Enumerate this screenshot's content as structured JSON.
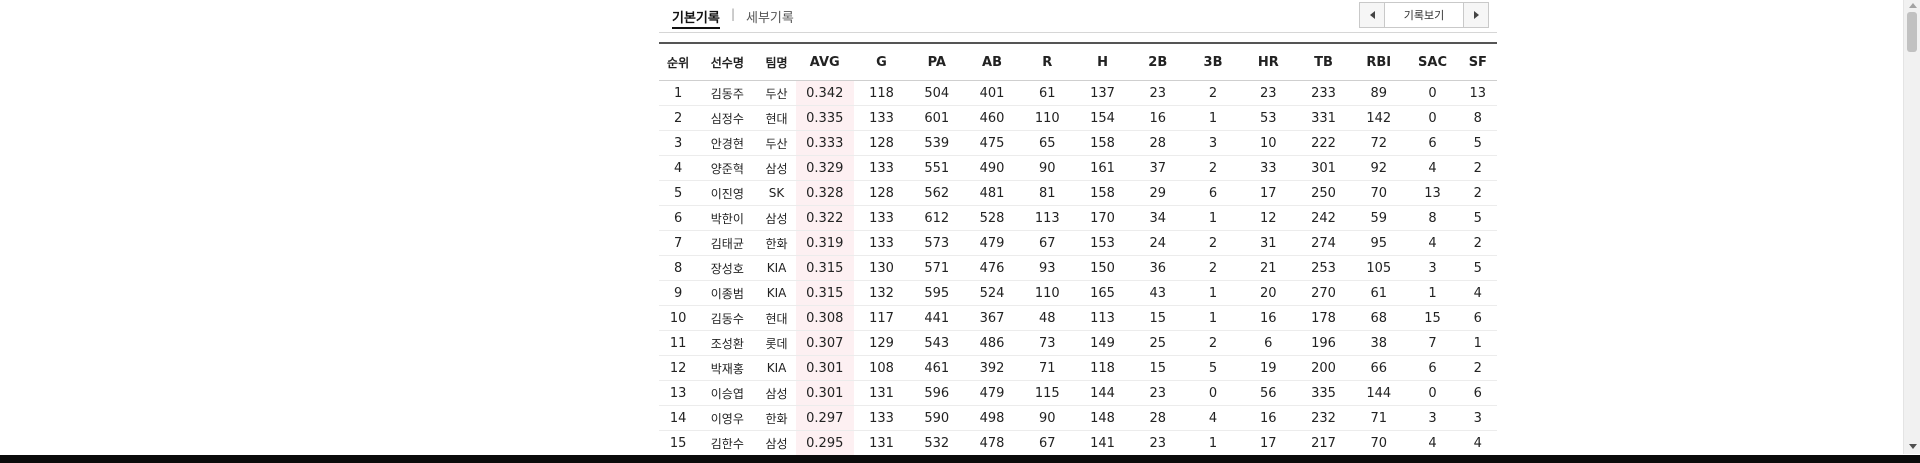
{
  "tabs": {
    "basic": "기본기록",
    "separator": "|",
    "detail": "세부기록"
  },
  "pager": {
    "label": "기록보기"
  },
  "table": {
    "columns": [
      "순위",
      "선수명",
      "팀명",
      "AVG",
      "G",
      "PA",
      "AB",
      "R",
      "H",
      "2B",
      "3B",
      "HR",
      "TB",
      "RBI",
      "SAC",
      "SF"
    ],
    "rows": [
      [
        "1",
        "김동주",
        "두산",
        "0.342",
        "118",
        "504",
        "401",
        "61",
        "137",
        "23",
        "2",
        "23",
        "233",
        "89",
        "0",
        "13"
      ],
      [
        "2",
        "심정수",
        "현대",
        "0.335",
        "133",
        "601",
        "460",
        "110",
        "154",
        "16",
        "1",
        "53",
        "331",
        "142",
        "0",
        "8"
      ],
      [
        "3",
        "안경현",
        "두산",
        "0.333",
        "128",
        "539",
        "475",
        "65",
        "158",
        "28",
        "3",
        "10",
        "222",
        "72",
        "6",
        "5"
      ],
      [
        "4",
        "양준혁",
        "삼성",
        "0.329",
        "133",
        "551",
        "490",
        "90",
        "161",
        "37",
        "2",
        "33",
        "301",
        "92",
        "4",
        "2"
      ],
      [
        "5",
        "이진영",
        "SK",
        "0.328",
        "128",
        "562",
        "481",
        "81",
        "158",
        "29",
        "6",
        "17",
        "250",
        "70",
        "13",
        "2"
      ],
      [
        "6",
        "박한이",
        "삼성",
        "0.322",
        "133",
        "612",
        "528",
        "113",
        "170",
        "34",
        "1",
        "12",
        "242",
        "59",
        "8",
        "5"
      ],
      [
        "7",
        "김태균",
        "한화",
        "0.319",
        "133",
        "573",
        "479",
        "67",
        "153",
        "24",
        "2",
        "31",
        "274",
        "95",
        "4",
        "2"
      ],
      [
        "8",
        "장성호",
        "KIA",
        "0.315",
        "130",
        "571",
        "476",
        "93",
        "150",
        "36",
        "2",
        "21",
        "253",
        "105",
        "3",
        "5"
      ],
      [
        "9",
        "이종범",
        "KIA",
        "0.315",
        "132",
        "595",
        "524",
        "110",
        "165",
        "43",
        "1",
        "20",
        "270",
        "61",
        "1",
        "4"
      ],
      [
        "10",
        "김동수",
        "현대",
        "0.308",
        "117",
        "441",
        "367",
        "48",
        "113",
        "15",
        "1",
        "16",
        "178",
        "68",
        "15",
        "6"
      ],
      [
        "11",
        "조성환",
        "롯데",
        "0.307",
        "129",
        "543",
        "486",
        "73",
        "149",
        "25",
        "2",
        "6",
        "196",
        "38",
        "7",
        "1"
      ],
      [
        "12",
        "박재홍",
        "KIA",
        "0.301",
        "108",
        "461",
        "392",
        "71",
        "118",
        "15",
        "5",
        "19",
        "200",
        "66",
        "6",
        "2"
      ],
      [
        "13",
        "이승엽",
        "삼성",
        "0.301",
        "131",
        "596",
        "479",
        "115",
        "144",
        "23",
        "0",
        "56",
        "335",
        "144",
        "0",
        "6"
      ],
      [
        "14",
        "이영우",
        "한화",
        "0.297",
        "133",
        "590",
        "498",
        "90",
        "148",
        "28",
        "4",
        "16",
        "232",
        "71",
        "3",
        "3"
      ],
      [
        "15",
        "김한수",
        "삼성",
        "0.295",
        "131",
        "532",
        "478",
        "67",
        "141",
        "23",
        "1",
        "17",
        "217",
        "70",
        "4",
        "4"
      ]
    ]
  },
  "colors": {
    "highlight_column": "#fdf0f2",
    "header_border": "#555555"
  }
}
